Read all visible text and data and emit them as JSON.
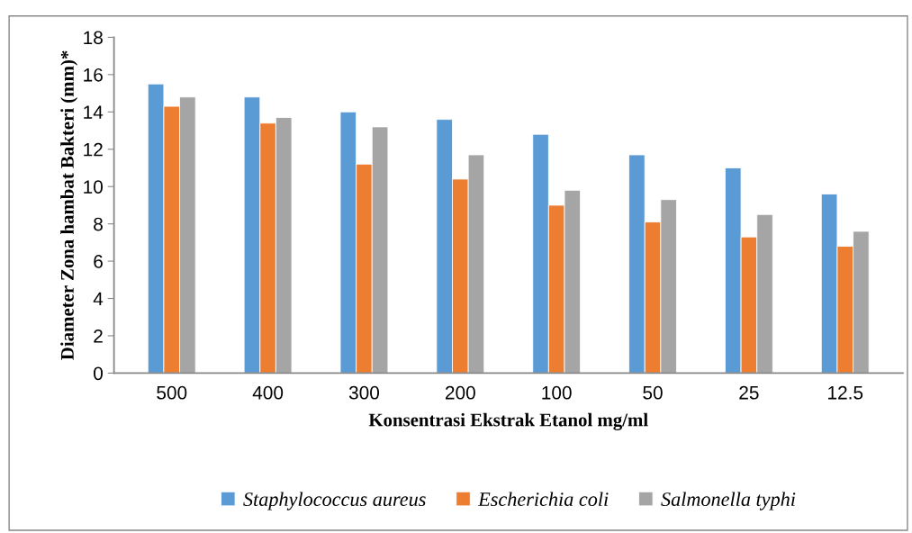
{
  "chart_data": {
    "type": "bar",
    "xlabel": "Konsentrasi Ekstrak Etanol mg/ml",
    "ylabel": "Diameter Zona hambat Bakteri (mm)*",
    "categories": [
      "500",
      "400",
      "300",
      "200",
      "100",
      "50",
      "25",
      "12.5"
    ],
    "series": [
      {
        "name": "Staphylococcus aureus",
        "color": "#5b9bd5",
        "values": [
          15.5,
          14.8,
          14.0,
          13.6,
          12.8,
          11.7,
          11.0,
          9.6
        ]
      },
      {
        "name": "Escherichia coli",
        "color": "#ed7d31",
        "values": [
          14.3,
          13.4,
          11.2,
          10.4,
          9.0,
          8.1,
          7.3,
          6.8
        ]
      },
      {
        "name": "Salmonella typhi",
        "color": "#a5a5a5",
        "values": [
          14.8,
          13.7,
          13.2,
          11.7,
          9.8,
          9.3,
          8.5,
          7.6
        ]
      }
    ],
    "ylim": [
      0,
      18
    ],
    "yticks": [
      0,
      2,
      4,
      6,
      8,
      10,
      12,
      14,
      16,
      18
    ],
    "grid": false,
    "legend": "bottom"
  }
}
